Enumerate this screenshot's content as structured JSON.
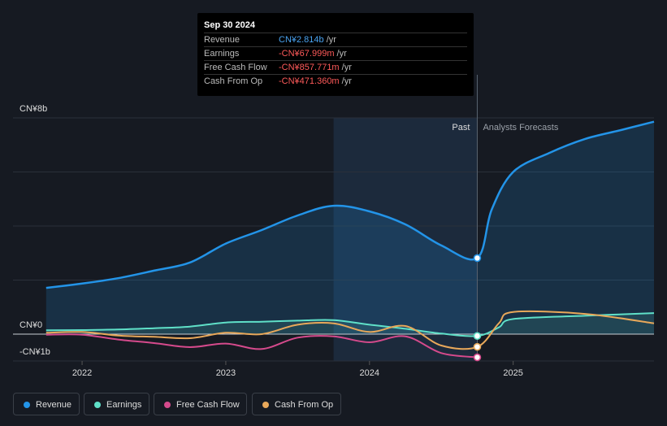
{
  "tooltip": {
    "date": "Sep 30 2024",
    "rows": [
      {
        "label": "Revenue",
        "value": "CN¥2.814b",
        "unit": "/yr",
        "color": "#4aa3f0"
      },
      {
        "label": "Earnings",
        "value": "-CN¥67.999m",
        "unit": "/yr",
        "color": "#ff5a5a"
      },
      {
        "label": "Free Cash Flow",
        "value": "-CN¥857.771m",
        "unit": "/yr",
        "color": "#ff5a5a"
      },
      {
        "label": "Cash From Op",
        "value": "-CN¥471.360m",
        "unit": "/yr",
        "color": "#ff5a5a"
      }
    ]
  },
  "legend": [
    {
      "label": "Revenue",
      "color": "#2394e8"
    },
    {
      "label": "Earnings",
      "color": "#5fe0c8"
    },
    {
      "label": "Free Cash Flow",
      "color": "#d54a8c"
    },
    {
      "label": "Cash From Op",
      "color": "#e8a85a"
    }
  ],
  "chart_data": {
    "type": "line",
    "title": "",
    "y_labels": {
      "top": "CN¥8b",
      "zero": "CN¥0",
      "bottom": "-CN¥1b"
    },
    "ylim": [
      -1,
      8
    ],
    "xlim": [
      2021.7,
      2025.98
    ],
    "x_ticks": [
      {
        "label": "2022",
        "value": 2022.0
      },
      {
        "label": "2023",
        "value": 2023.0
      },
      {
        "label": "2024",
        "value": 2024.0
      },
      {
        "label": "2025",
        "value": 2025.0
      }
    ],
    "past_label": "Past",
    "forecast_label": "Analysts Forecasts",
    "divider_x": 2024.75,
    "highlight_start": 2023.75,
    "series": [
      {
        "name": "Revenue",
        "color": "#2394e8",
        "x": [
          2021.75,
          2022.0,
          2022.25,
          2022.5,
          2022.75,
          2023.0,
          2023.25,
          2023.5,
          2023.75,
          2024.0,
          2024.25,
          2024.5,
          2024.75,
          2024.85,
          2025.0,
          2025.25,
          2025.5,
          2025.75,
          2025.98
        ],
        "y": [
          1.71,
          1.87,
          2.07,
          2.35,
          2.65,
          3.35,
          3.85,
          4.39,
          4.75,
          4.54,
          4.06,
          3.28,
          2.814,
          4.6,
          6.0,
          6.7,
          7.22,
          7.55,
          7.86
        ]
      },
      {
        "name": "Earnings",
        "color": "#5fe0c8",
        "x": [
          2021.75,
          2022.0,
          2022.25,
          2022.5,
          2022.75,
          2023.0,
          2023.25,
          2023.5,
          2023.75,
          2024.0,
          2024.25,
          2024.5,
          2024.75,
          2024.9,
          2025.0,
          2025.5,
          2025.98
        ],
        "y": [
          0.14,
          0.15,
          0.17,
          0.22,
          0.28,
          0.43,
          0.46,
          0.5,
          0.52,
          0.35,
          0.2,
          0.02,
          -0.068,
          0.25,
          0.56,
          0.68,
          0.78
        ]
      },
      {
        "name": "Free Cash Flow",
        "color": "#d54a8c",
        "x": [
          2021.75,
          2022.0,
          2022.25,
          2022.5,
          2022.75,
          2023.0,
          2023.25,
          2023.5,
          2023.75,
          2024.0,
          2024.25,
          2024.5,
          2024.75
        ],
        "y": [
          -0.02,
          -0.02,
          -0.2,
          -0.33,
          -0.48,
          -0.35,
          -0.55,
          -0.13,
          -0.08,
          -0.3,
          -0.08,
          -0.7,
          -0.858
        ]
      },
      {
        "name": "Cash From Op",
        "color": "#e8a85a",
        "x": [
          2021.75,
          2022.0,
          2022.25,
          2022.5,
          2022.75,
          2023.0,
          2023.25,
          2023.5,
          2023.75,
          2024.0,
          2024.25,
          2024.5,
          2024.75,
          2024.9,
          2025.0,
          2025.5,
          2025.98
        ],
        "y": [
          0.05,
          0.08,
          -0.05,
          -0.1,
          -0.15,
          0.05,
          0.0,
          0.35,
          0.4,
          0.08,
          0.3,
          -0.42,
          -0.471,
          0.4,
          0.82,
          0.75,
          0.4
        ]
      }
    ]
  }
}
